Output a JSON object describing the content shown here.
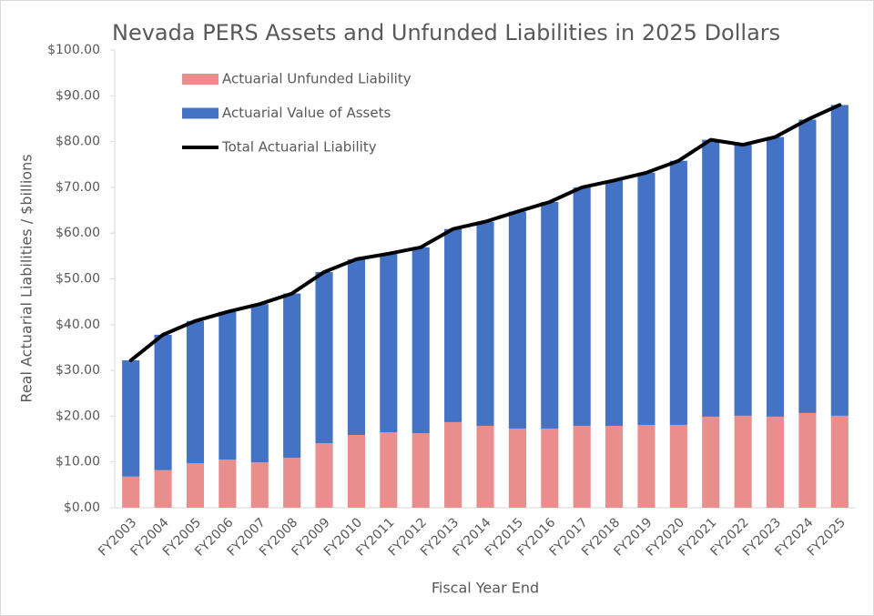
{
  "chart_data": {
    "type": "bar",
    "stacked": true,
    "title": "Nevada PERS Assets and Unfunded Liabilities in 2025 Dollars",
    "x_label": "Fiscal Year End",
    "y_label": "Real Actuarial Liabilities / $billions",
    "categories": [
      "FY2003",
      "FY2004",
      "FY2005",
      "FY2006",
      "FY2007",
      "FY2008",
      "FY2009",
      "FY2010",
      "FY2011",
      "FY2012",
      "FY2013",
      "FY2014",
      "FY2015",
      "FY2016",
      "FY2017",
      "FY2018",
      "FY2019",
      "FY2020",
      "FY2021",
      "FY2022",
      "FY2023",
      "FY2024",
      "FY2025"
    ],
    "series": [
      {
        "name": "Actuarial Unfunded Liability",
        "type": "bar",
        "color": "#e98d8d",
        "values": [
          6.8,
          8.2,
          9.7,
          10.5,
          9.9,
          10.9,
          14.1,
          15.9,
          16.5,
          16.3,
          18.7,
          17.9,
          17.3,
          17.3,
          17.9,
          17.9,
          18.1,
          18.1,
          19.9,
          20.1,
          19.9,
          20.7,
          20.1
        ]
      },
      {
        "name": "Actuarial Value of Assets",
        "type": "bar",
        "color": "#4472c4",
        "values": [
          25.4,
          29.6,
          31.1,
          32.3,
          34.6,
          35.9,
          37.4,
          38.4,
          39.0,
          40.6,
          42.2,
          44.6,
          47.4,
          49.5,
          52.1,
          53.6,
          55.1,
          57.7,
          60.5,
          59.2,
          61.1,
          64.1,
          67.9
        ]
      },
      {
        "name": "Total Actuarial Liability",
        "type": "line",
        "color": "#000000",
        "values": [
          32.2,
          37.8,
          40.8,
          42.8,
          44.5,
          46.8,
          51.5,
          54.3,
          55.5,
          56.9,
          60.9,
          62.5,
          64.7,
          66.8,
          70.0,
          71.5,
          73.2,
          75.8,
          80.4,
          79.3,
          81.0,
          84.8,
          88.0
        ]
      }
    ],
    "ylim": [
      0,
      100
    ],
    "yticks": [
      {
        "value": 0,
        "label": "$0.00"
      },
      {
        "value": 10,
        "label": "$10.00"
      },
      {
        "value": 20,
        "label": "$20.00"
      },
      {
        "value": 30,
        "label": "$30.00"
      },
      {
        "value": 40,
        "label": "$40.00"
      },
      {
        "value": 50,
        "label": "$50.00"
      },
      {
        "value": 60,
        "label": "$60.00"
      },
      {
        "value": 70,
        "label": "$70.00"
      },
      {
        "value": 80,
        "label": "$80.00"
      },
      {
        "value": 90,
        "label": "$90.00"
      },
      {
        "value": 100,
        "label": "$100.00"
      }
    ],
    "grid": false,
    "legend": "upper left"
  }
}
